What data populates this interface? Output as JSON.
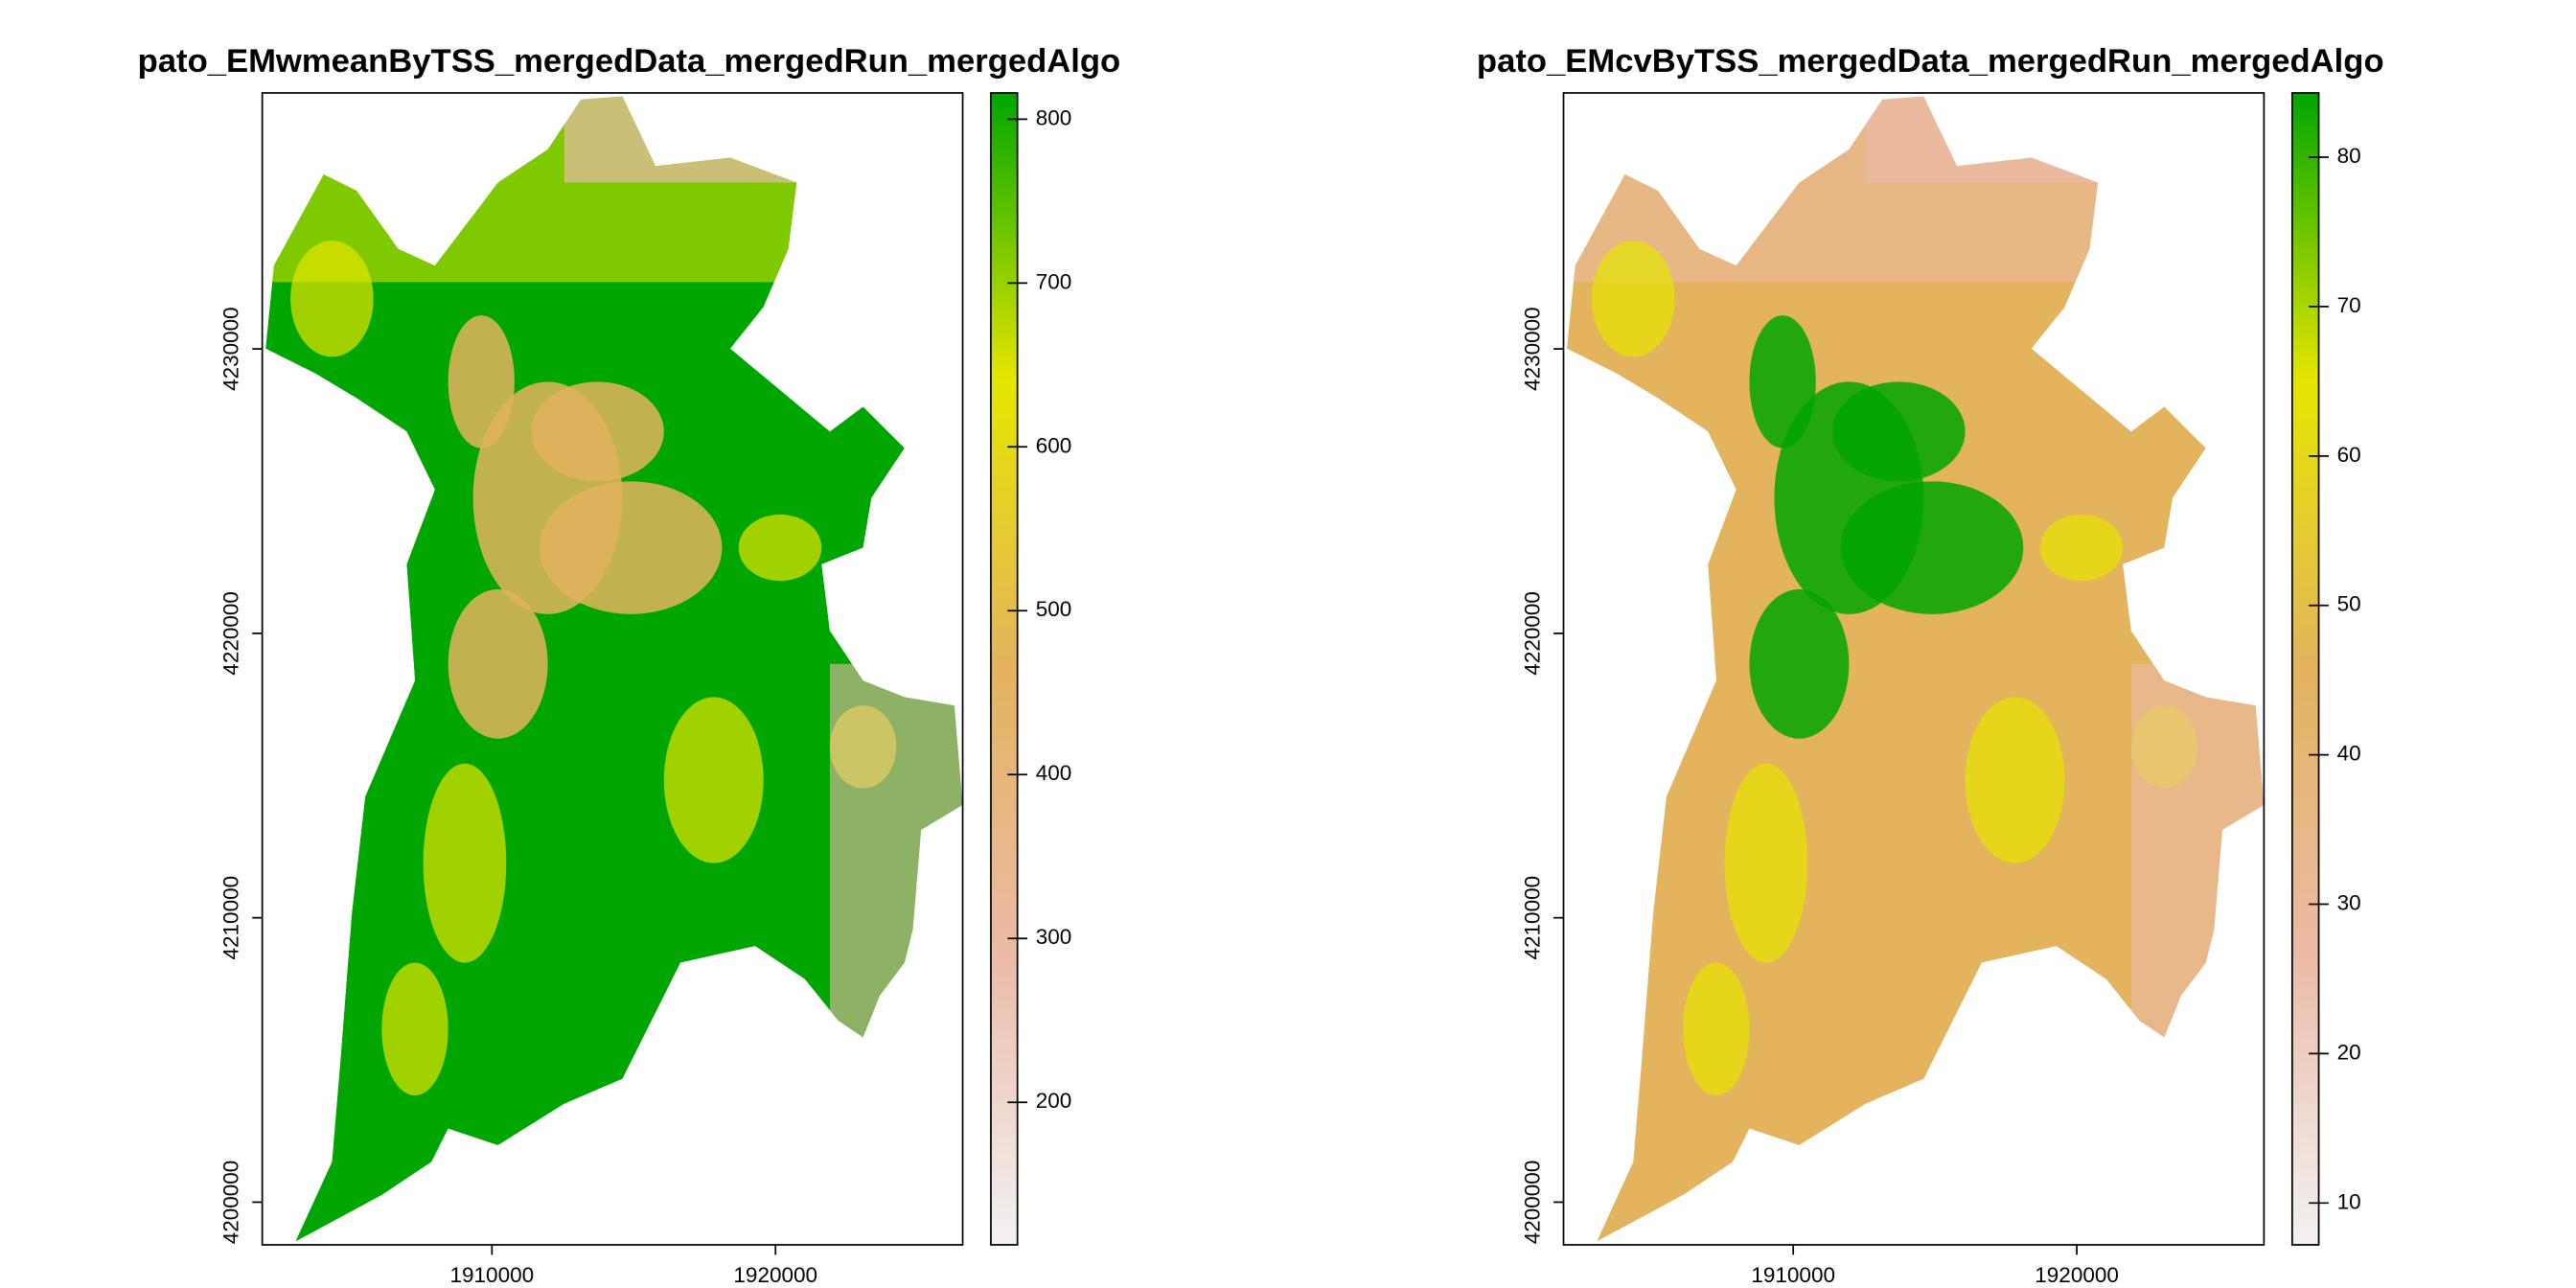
{
  "chart_data": [
    {
      "type": "raster",
      "title": "pato_EMwmeanByTSS_mergedData_mergedRun_mergedAlgo",
      "xlim": [
        1901900,
        1926600
      ],
      "ylim": [
        4198500,
        4239000
      ],
      "xticks": [
        1910000,
        1920000
      ],
      "yticks": [
        4200000,
        4210000,
        4220000,
        4230000
      ],
      "zlim": [
        113,
        816
      ],
      "zticks": [
        200,
        300,
        400,
        500,
        600,
        700,
        800
      ],
      "colors": [
        "#F2F2F2",
        "#EBBBA8",
        "#E3B35E",
        "#E6E600",
        "#00A600"
      ]
    },
    {
      "type": "raster",
      "title": "pato_EMcvByTSS_mergedData_mergedRun_mergedAlgo",
      "xlim": [
        1901900,
        1926600
      ],
      "ylim": [
        4198500,
        4239000
      ],
      "xticks": [
        1910000,
        1920000
      ],
      "yticks": [
        4200000,
        4210000,
        4220000,
        4230000
      ],
      "zlim": [
        7.2,
        84.3
      ],
      "zticks": [
        10,
        20,
        30,
        40,
        50,
        60,
        70,
        80
      ],
      "colors": [
        "#F2F2F2",
        "#EBBBA8",
        "#E3B35E",
        "#E6E600",
        "#00A600"
      ]
    }
  ]
}
